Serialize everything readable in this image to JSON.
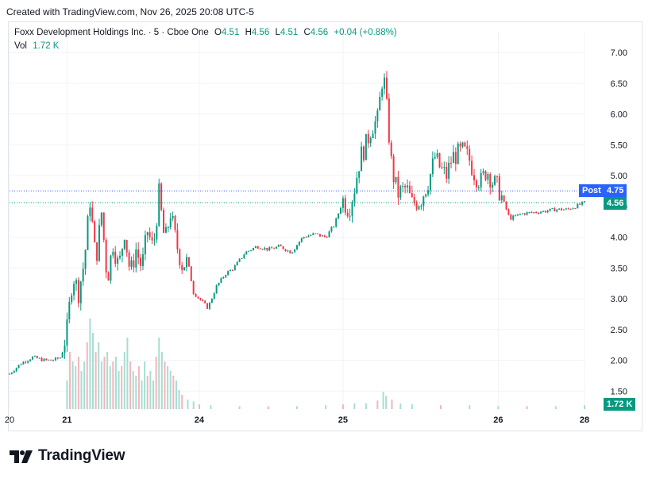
{
  "header": {
    "created": "Created with TradingView.com, Nov 26, 2025 20:08 UTC-5"
  },
  "legend": {
    "symbol": "Foxx Development Holdings Inc. · 5 · Cboe One",
    "o_label": "O",
    "o": "4.51",
    "h_label": "H",
    "h": "4.56",
    "l_label": "L",
    "l": "4.51",
    "c_label": "C",
    "c": "4.56",
    "change": "+0.04 (+0.88%)",
    "vol_label": "Vol",
    "vol": "1.72 K"
  },
  "tags": {
    "post_label": "Post",
    "post_price": "4.75",
    "last_price": "4.56",
    "volume": "1.72 K"
  },
  "branding": {
    "name": "TradingView"
  },
  "colors": {
    "up": "#089981",
    "down": "#f23645",
    "post": "#2962ff",
    "grid": "#f0f3fa",
    "vol_up": "#a7ddd3",
    "vol_down": "#f5b5b9"
  },
  "chart_data": {
    "type": "candlestick",
    "interval": "5",
    "y_ticks": [
      "1.50",
      "2.00",
      "2.50",
      "3.00",
      "3.50",
      "4.00",
      "4.50",
      "5.00",
      "5.50",
      "6.00",
      "6.50",
      "7.00"
    ],
    "ylim": [
      1.3,
      7.2
    ],
    "x_ticks": [
      {
        "label": "20",
        "pos": 0.0,
        "bold": false
      },
      {
        "label": "21",
        "pos": 0.1,
        "bold": true
      },
      {
        "label": "24",
        "pos": 0.33,
        "bold": true
      },
      {
        "label": "25",
        "pos": 0.58,
        "bold": true
      },
      {
        "label": "26",
        "pos": 0.85,
        "bold": true
      },
      {
        "label": "28",
        "pos": 1.0,
        "bold": true
      }
    ],
    "price_lines": [
      {
        "name": "Post",
        "value": 4.75
      },
      {
        "name": "Last",
        "value": 4.56
      }
    ],
    "path": [
      [
        0.0,
        1.78
      ],
      [
        0.02,
        1.95
      ],
      [
        0.04,
        2.05
      ],
      [
        0.06,
        2.0
      ],
      [
        0.075,
        2.0
      ],
      [
        0.09,
        2.05
      ],
      [
        0.1,
        2.5
      ],
      [
        0.11,
        3.4
      ],
      [
        0.12,
        3.1
      ],
      [
        0.13,
        3.6
      ],
      [
        0.14,
        4.6
      ],
      [
        0.15,
        3.6
      ],
      [
        0.16,
        4.4
      ],
      [
        0.17,
        3.3
      ],
      [
        0.18,
        3.9
      ],
      [
        0.19,
        3.5
      ],
      [
        0.2,
        4.1
      ],
      [
        0.21,
        3.4
      ],
      [
        0.22,
        3.8
      ],
      [
        0.23,
        3.5
      ],
      [
        0.24,
        4.1
      ],
      [
        0.25,
        3.8
      ],
      [
        0.26,
        4.7
      ],
      [
        0.27,
        3.9
      ],
      [
        0.28,
        4.4
      ],
      [
        0.29,
        3.9
      ],
      [
        0.3,
        3.55
      ],
      [
        0.31,
        3.6
      ],
      [
        0.32,
        3.1
      ],
      [
        0.33,
        3.0
      ],
      [
        0.345,
        2.85
      ],
      [
        0.36,
        3.2
      ],
      [
        0.375,
        3.4
      ],
      [
        0.39,
        3.5
      ],
      [
        0.41,
        3.75
      ],
      [
        0.43,
        3.85
      ],
      [
        0.45,
        3.8
      ],
      [
        0.47,
        3.85
      ],
      [
        0.49,
        3.75
      ],
      [
        0.51,
        4.0
      ],
      [
        0.53,
        4.05
      ],
      [
        0.55,
        4.0
      ],
      [
        0.565,
        4.2
      ],
      [
        0.58,
        4.6
      ],
      [
        0.59,
        4.45
      ],
      [
        0.6,
        4.8
      ],
      [
        0.61,
        5.3
      ],
      [
        0.62,
        5.5
      ],
      [
        0.63,
        5.8
      ],
      [
        0.64,
        5.9
      ],
      [
        0.65,
        6.7
      ],
      [
        0.655,
        6.2
      ],
      [
        0.665,
        5.1
      ],
      [
        0.675,
        4.7
      ],
      [
        0.69,
        4.8
      ],
      [
        0.7,
        4.55
      ],
      [
        0.715,
        4.6
      ],
      [
        0.73,
        4.95
      ],
      [
        0.74,
        5.3
      ],
      [
        0.75,
        5.1
      ],
      [
        0.76,
        5.0
      ],
      [
        0.77,
        5.3
      ],
      [
        0.78,
        5.35
      ],
      [
        0.79,
        5.4
      ],
      [
        0.8,
        5.25
      ],
      [
        0.81,
        5.0
      ],
      [
        0.82,
        4.9
      ],
      [
        0.83,
        5.1
      ],
      [
        0.84,
        4.9
      ],
      [
        0.85,
        4.8
      ],
      [
        0.86,
        4.55
      ],
      [
        0.87,
        4.3
      ],
      [
        0.89,
        4.38
      ],
      [
        0.91,
        4.4
      ],
      [
        0.93,
        4.42
      ],
      [
        0.95,
        4.45
      ],
      [
        0.97,
        4.45
      ],
      [
        0.985,
        4.5
      ],
      [
        1.0,
        4.56
      ]
    ],
    "volume": [
      [
        0.1,
        0.3
      ],
      [
        0.105,
        0.6
      ],
      [
        0.11,
        0.5
      ],
      [
        0.115,
        0.45
      ],
      [
        0.12,
        0.55
      ],
      [
        0.125,
        0.4
      ],
      [
        0.13,
        0.5
      ],
      [
        0.135,
        0.7
      ],
      [
        0.14,
        0.95
      ],
      [
        0.145,
        0.8
      ],
      [
        0.15,
        0.6
      ],
      [
        0.155,
        0.7
      ],
      [
        0.16,
        0.5
      ],
      [
        0.165,
        0.55
      ],
      [
        0.17,
        0.6
      ],
      [
        0.175,
        0.45
      ],
      [
        0.18,
        0.5
      ],
      [
        0.185,
        0.55
      ],
      [
        0.19,
        0.4
      ],
      [
        0.195,
        0.45
      ],
      [
        0.2,
        0.6
      ],
      [
        0.205,
        0.75
      ],
      [
        0.21,
        0.5
      ],
      [
        0.215,
        0.4
      ],
      [
        0.22,
        0.35
      ],
      [
        0.225,
        0.45
      ],
      [
        0.23,
        0.3
      ],
      [
        0.235,
        0.5
      ],
      [
        0.24,
        0.35
      ],
      [
        0.245,
        0.4
      ],
      [
        0.25,
        0.3
      ],
      [
        0.255,
        0.55
      ],
      [
        0.26,
        0.75
      ],
      [
        0.265,
        0.6
      ],
      [
        0.27,
        0.5
      ],
      [
        0.275,
        0.45
      ],
      [
        0.28,
        0.4
      ],
      [
        0.285,
        0.35
      ],
      [
        0.29,
        0.3
      ],
      [
        0.295,
        0.2
      ],
      [
        0.3,
        0.15
      ],
      [
        0.31,
        0.1
      ],
      [
        0.32,
        0.08
      ],
      [
        0.33,
        0.05
      ],
      [
        0.35,
        0.04
      ],
      [
        0.4,
        0.03
      ],
      [
        0.45,
        0.03
      ],
      [
        0.5,
        0.03
      ],
      [
        0.55,
        0.04
      ],
      [
        0.58,
        0.05
      ],
      [
        0.6,
        0.06
      ],
      [
        0.62,
        0.06
      ],
      [
        0.64,
        0.09
      ],
      [
        0.65,
        0.18
      ],
      [
        0.655,
        0.14
      ],
      [
        0.665,
        0.1
      ],
      [
        0.68,
        0.06
      ],
      [
        0.7,
        0.05
      ],
      [
        0.75,
        0.04
      ],
      [
        0.8,
        0.04
      ],
      [
        0.85,
        0.03
      ],
      [
        0.9,
        0.03
      ],
      [
        0.95,
        0.03
      ],
      [
        1.0,
        0.04
      ]
    ]
  }
}
